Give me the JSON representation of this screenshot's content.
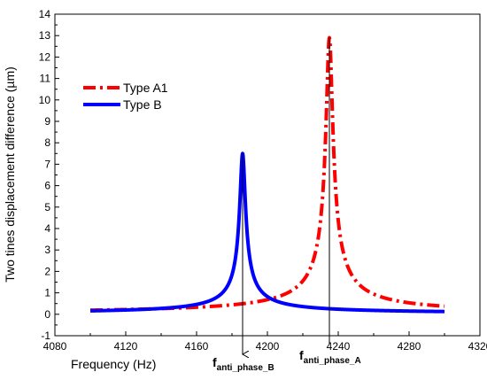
{
  "chart_data": {
    "type": "line",
    "xlabel": "Frequency (Hz)",
    "ylabel": "Two tines displacement difference (µm)",
    "xlim": [
      4080,
      4320
    ],
    "ylim": [
      -1,
      14
    ],
    "x_ticks": [
      4080,
      4120,
      4160,
      4200,
      4240,
      4280,
      4320
    ],
    "y_ticks": [
      -1,
      0,
      1,
      2,
      3,
      4,
      5,
      6,
      7,
      8,
      9,
      10,
      11,
      12,
      13,
      14
    ],
    "grid": false,
    "legend_position": "upper-left",
    "series": [
      {
        "name": "Type A1",
        "color": "#ff0000",
        "line_style": "dash-dot",
        "resonance": {
          "center_hz": 4235,
          "peak_um": 12.9,
          "baseline_um": 0.02,
          "width_hz": 1.8
        },
        "x": [
          4100,
          4140,
          4180,
          4200,
          4215,
          4225,
          4230,
          4232,
          4233,
          4234,
          4234.5,
          4235,
          4235.5,
          4236,
          4237,
          4238,
          4240,
          4245,
          4255,
          4270,
          4300
        ],
        "y": [
          0.02,
          0.03,
          0.06,
          0.12,
          0.2,
          0.45,
          0.9,
          1.6,
          2.5,
          5.5,
          9.0,
          12.9,
          9.0,
          5.5,
          3.0,
          1.9,
          1.1,
          0.5,
          0.25,
          0.13,
          0.06
        ]
      },
      {
        "name": "Type B",
        "color": "#0000ff",
        "line_style": "solid",
        "resonance": {
          "center_hz": 4186,
          "peak_um": 7.5,
          "baseline_um": 0.03,
          "width_hz": 1.5
        },
        "x": [
          4100,
          4130,
          4150,
          4165,
          4175,
          4180,
          4183,
          4184.5,
          4185,
          4185.5,
          4186,
          4186.5,
          4187,
          4187.5,
          4189,
          4192,
          4197,
          4205,
          4220,
          4250,
          4300
        ],
        "y": [
          0.05,
          0.08,
          0.13,
          0.22,
          0.38,
          0.65,
          1.2,
          2.4,
          3.6,
          5.6,
          7.5,
          5.6,
          3.6,
          2.4,
          1.2,
          0.65,
          0.38,
          0.22,
          0.13,
          0.08,
          0.05
        ]
      }
    ],
    "annotations": [
      {
        "main": "f",
        "sub": "anti_phase_B",
        "x": 4186
      },
      {
        "main": "f",
        "sub": "anti_phase_A",
        "x": 4235
      }
    ]
  }
}
